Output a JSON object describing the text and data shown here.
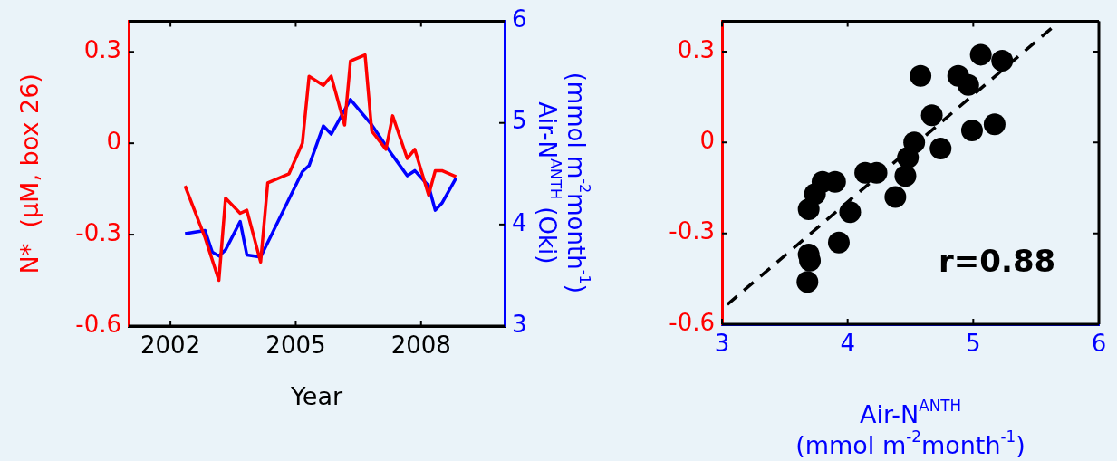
{
  "chart_data": [
    {
      "type": "line",
      "xlabel": "Year",
      "ylabel": "N*  (μM, box 26)",
      "y2label": "Air-N$^{ANTH}$ (Oki)\n(mmol m$^{-2}$month$^{-1}$)",
      "xlim": [
        2001,
        2010
      ],
      "xticks": [
        2002,
        2005,
        2008
      ],
      "ylim": [
        -0.6,
        0.4
      ],
      "yticks": [
        -0.6,
        -0.3,
        0,
        0.3
      ],
      "y2lim": [
        3,
        6
      ],
      "y2ticks": [
        3,
        4,
        5,
        6
      ],
      "grid": false,
      "legend": false,
      "marker": "none",
      "line_style": "solid",
      "series": [
        {
          "color": "#ff0000",
          "x": [
            2002.35,
            2002.83,
            2003.16,
            2003.32,
            2003.67,
            2003.83,
            2004.16,
            2004.33,
            2004.84,
            2005.16,
            2005.32,
            2005.66,
            2005.85,
            2006.17,
            2006.31,
            2006.66,
            2006.82,
            2007.16,
            2007.32,
            2007.67,
            2007.85,
            2008.18,
            2008.34,
            2008.5,
            2008.84
          ],
          "values": [
            -0.14,
            -0.31,
            -0.45,
            -0.18,
            -0.23,
            -0.22,
            -0.39,
            -0.13,
            -0.1,
            0,
            0.22,
            0.19,
            0.22,
            0.06,
            0.27,
            0.29,
            0.04,
            -0.02,
            0.09,
            -0.05,
            -0.02,
            -0.17,
            -0.09,
            -0.09,
            -0.11
          ]
        },
        {
          "color": "#0000ff",
          "axis": "y2",
          "x": [
            2002.35,
            2002.83,
            2003.0,
            2003.16,
            2003.32,
            2003.67,
            2003.83,
            2004.16,
            2005.16,
            2005.32,
            2005.66,
            2005.85,
            2006.31,
            2006.82,
            2007.32,
            2007.67,
            2007.85,
            2008.18,
            2008.34,
            2008.5,
            2008.84
          ],
          "values": [
            3.91,
            3.94,
            3.73,
            3.69,
            3.75,
            4.03,
            3.7,
            3.68,
            4.52,
            4.58,
            4.97,
            4.89,
            5.23,
            4.98,
            4.68,
            4.48,
            4.53,
            4.38,
            4.14,
            4.21,
            4.46
          ]
        }
      ]
    },
    {
      "type": "scatter",
      "xlabel": "Air-N$^{ANTH}$\n(mmol m$^{-2}$month$^{-1}$)",
      "annotations": [
        "r=0.88"
      ],
      "xlim": [
        3,
        6
      ],
      "xticks": [
        3,
        4,
        5,
        6
      ],
      "ylim": [
        -0.6,
        0.4
      ],
      "yticks": [
        -0.6,
        -0.3,
        0,
        0.3
      ],
      "grid": false,
      "legend": false,
      "marker": "circle",
      "series": [
        {
          "color": "#000000",
          "x": [
            4.58,
            5.06,
            5.23,
            4.88,
            4.96,
            4.67,
            4.99,
            5.17,
            4.53,
            4.74,
            4.48,
            4.46,
            4.38,
            4.14,
            4.23,
            3.9,
            3.8,
            3.74,
            3.69,
            4.02,
            3.93,
            3.69,
            3.7,
            3.68
          ],
          "values": [
            0.22,
            0.29,
            0.27,
            0.22,
            0.19,
            0.09,
            0.04,
            0.06,
            0,
            -0.02,
            -0.05,
            -0.11,
            -0.18,
            -0.1,
            -0.1,
            -0.13,
            -0.13,
            -0.17,
            -0.22,
            -0.23,
            -0.33,
            -0.37,
            -0.39,
            -0.46
          ]
        },
        {
          "type": "line",
          "color": "#000000",
          "line_style": "dashed",
          "marker": "none",
          "x": [
            3.0,
            5.63
          ],
          "values": [
            -0.55,
            0.38
          ]
        }
      ]
    }
  ]
}
